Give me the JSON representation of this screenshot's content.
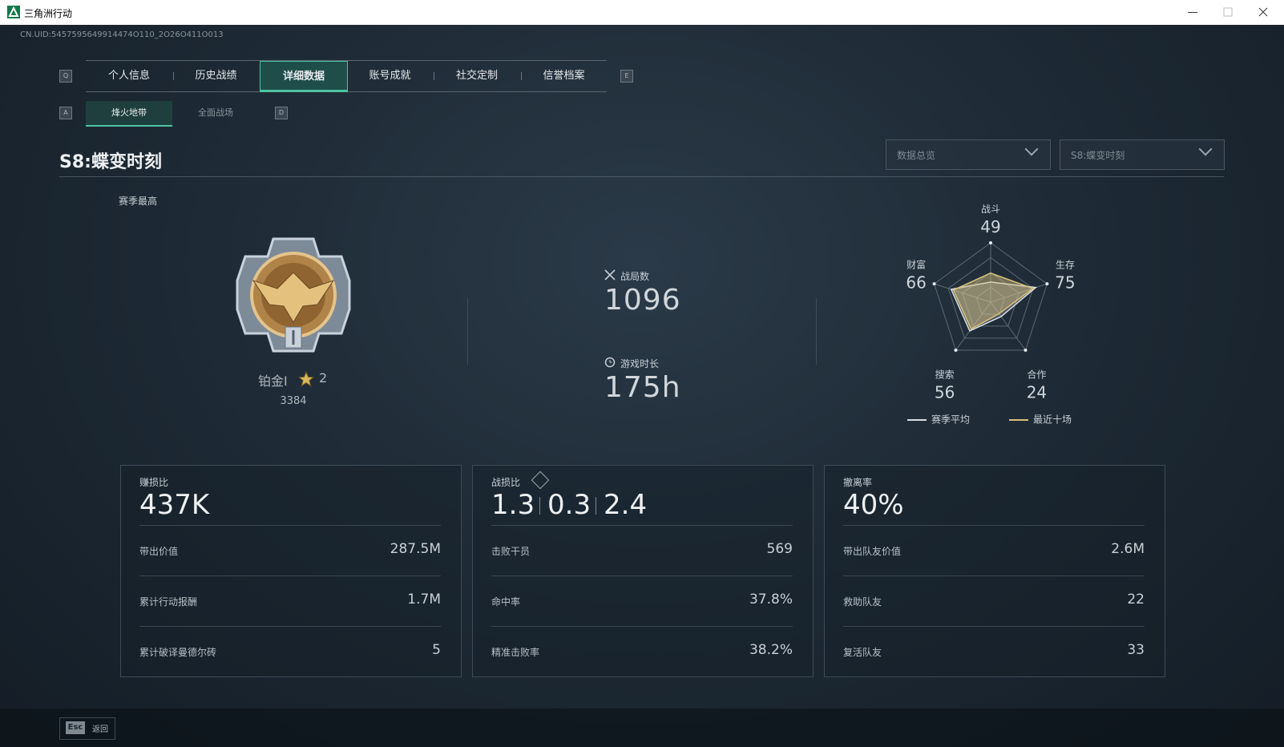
{
  "window": {
    "title": "三角洲行动"
  },
  "uid": "CN.UID:5457595649914474O110_2O26O411O013",
  "tabs": {
    "keys": [
      "Q",
      "E"
    ],
    "items": [
      "个人信息",
      "历史战绩",
      "详细数据",
      "账号成就",
      "社交定制",
      "信誉档案"
    ],
    "active": 2
  },
  "subtabs": {
    "keys": [
      "A",
      "D"
    ],
    "items": [
      "烽火地带",
      "全面战场"
    ],
    "active": 0
  },
  "season": {
    "title": "S8:蝶变时刻",
    "filters": [
      "数据总览",
      "S8:蝶变时刻"
    ]
  },
  "rank": {
    "heading": "赛季最高",
    "name": "铂金Ⅰ",
    "stars": "2",
    "score": "3384"
  },
  "summary": [
    {
      "label": "战局数",
      "value": "1096"
    },
    {
      "label": "游戏时长",
      "value": "175h"
    }
  ],
  "radar": {
    "axes": [
      "战斗",
      "生存",
      "合作",
      "搜索",
      "财富"
    ],
    "rlim": [
      0,
      100
    ],
    "series": [
      {
        "name": "赛季平均",
        "color": "#d8dde2",
        "values": [
          34,
          80,
          30,
          60,
          70
        ]
      },
      {
        "name": "最近十场",
        "color": "#d9c07a",
        "values": [
          49,
          75,
          24,
          56,
          66
        ]
      }
    ]
  },
  "cards": [
    {
      "title": "赚损比",
      "values": [
        "437K"
      ],
      "rows": [
        [
          "带出价值",
          "287.5M"
        ],
        [
          "累计行动报酬",
          "1.7M"
        ],
        [
          "累计破译曼德尔砖",
          "5"
        ]
      ]
    },
    {
      "title": "战损比",
      "values": [
        "1.3",
        "0.3",
        "2.4"
      ],
      "rows": [
        [
          "击败干员",
          "569"
        ],
        [
          "命中率",
          "37.8%"
        ],
        [
          "精准击败率",
          "38.2%"
        ]
      ]
    },
    {
      "title": "撤离率",
      "values": [
        "40%"
      ],
      "rows": [
        [
          "带出队友价值",
          "2.6M"
        ],
        [
          "救助队友",
          "22"
        ],
        [
          "复活队友",
          "33"
        ]
      ]
    }
  ],
  "footer": {
    "key": "Esc",
    "label": "返回"
  }
}
